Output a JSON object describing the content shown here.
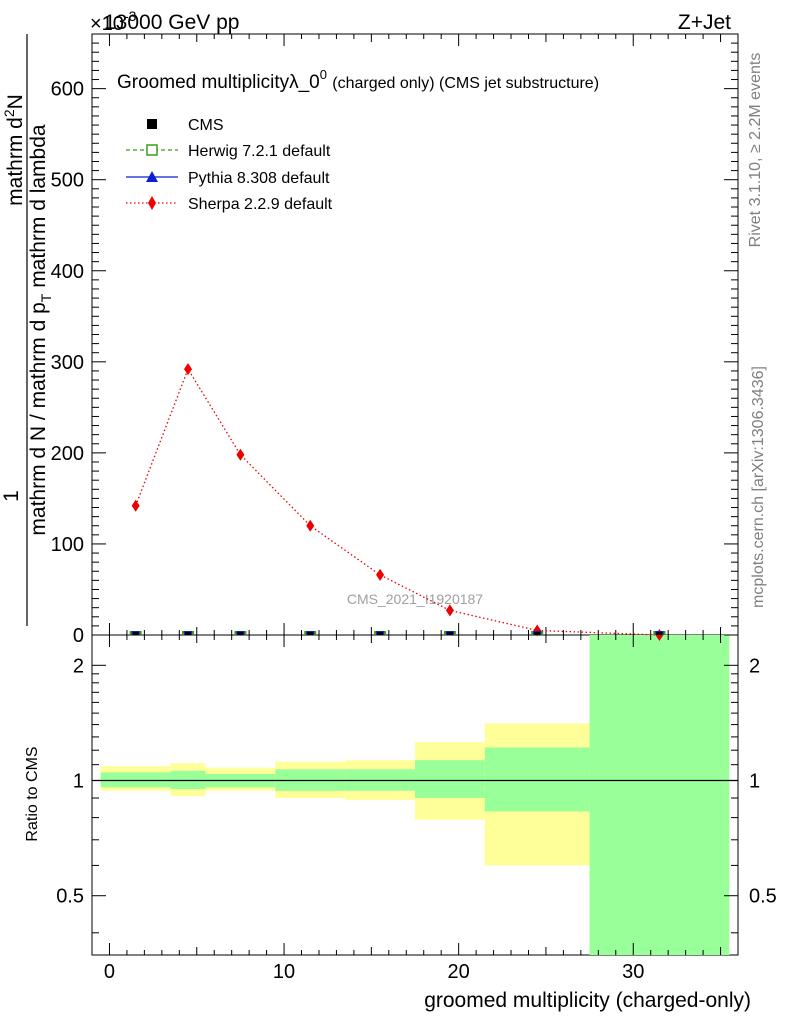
{
  "header": {
    "energy_label": "13000 GeV pp",
    "process_label": "Z+Jet",
    "exponent_label": "×10",
    "exponent_power": "-3"
  },
  "side": {
    "rivet_label": "Rivet 3.1.10, ≥ 2.2M events",
    "source_label": "mcplots.cern.ch [arXiv:1306.3436]"
  },
  "chart_data": [
    {
      "type": "line",
      "panel": "main",
      "title_main": "Groomed multiplicityλ_0",
      "title_sup": "0",
      "title_extra": "(charged only) (CMS jet substructure)",
      "ylabel_top": "1",
      "ylabel_left_lines": [
        "mathrm dN",
        "mathrm d p_T mathrm d lambda",
        "mathrm d N / mathrm d p_T mathrm d lambda"
      ],
      "ylabel_left_text": "mathrm d N / mathrm d p",
      "ylabel_left_sub": "T",
      "ylabel_mid_text": "mathrm d p",
      "ylabel_mid_sub": "T",
      "ylabel_mid_tail": " mathrm d lambda",
      "ylabel_numer": "mathrm d",
      "ylabel_numer_sup": "2",
      "ylabel_numer_tail": "N",
      "ylim": [
        0,
        660
      ],
      "yticks": [
        0,
        100,
        200,
        300,
        400,
        500,
        600
      ],
      "watermark": "CMS_2021_I1920187",
      "legend_position": "top-left",
      "legend": [
        {
          "label": "CMS",
          "color": "#000000",
          "marker": "square-filled",
          "line": "none"
        },
        {
          "label": "Herwig 7.2.1 default",
          "color": "#3c9a1c",
          "marker": "square-open",
          "line": "dashed"
        },
        {
          "label": "Pythia 8.308 default",
          "color": "#0a1fd0",
          "marker": "triangle",
          "line": "solid"
        },
        {
          "label": "Sherpa 2.2.9 default",
          "color": "#ee0000",
          "marker": "diamond",
          "line": "dotted"
        }
      ],
      "series": [
        {
          "name": "Sherpa 2.2.9 default",
          "color": "#ee0000",
          "x": [
            1.5,
            4.5,
            7.5,
            11.5,
            15.5,
            19.5,
            24.5,
            31.5
          ],
          "y": [
            142,
            292,
            198,
            120,
            66,
            27,
            5,
            0
          ]
        },
        {
          "name": "CMS",
          "color": "#000000",
          "x": [
            1.5,
            4.5,
            7.5,
            11.5,
            15.5,
            19.5,
            24.5,
            31.5
          ],
          "y": [
            0,
            0,
            0,
            0,
            0,
            0,
            0,
            0
          ]
        }
      ]
    },
    {
      "type": "area",
      "panel": "ratio",
      "ylabel": "Ratio to CMS",
      "xlabel": "groomed multiplicity (charged-only)",
      "xlim": [
        -1,
        36
      ],
      "xticks": [
        0,
        10,
        20,
        30
      ],
      "yticks": [
        0.5,
        1,
        2
      ],
      "ylim": [
        0.35,
        2.4
      ],
      "log_scale": true,
      "reference": 1,
      "bins": [
        {
          "lo": -0.5,
          "hi": 3.5,
          "stat_lo": 0.96,
          "stat_hi": 1.05,
          "tot_lo": 0.94,
          "tot_hi": 1.09
        },
        {
          "lo": 3.5,
          "hi": 5.5,
          "stat_lo": 0.95,
          "stat_hi": 1.06,
          "tot_lo": 0.91,
          "tot_hi": 1.11
        },
        {
          "lo": 5.5,
          "hi": 9.5,
          "stat_lo": 0.96,
          "stat_hi": 1.04,
          "tot_lo": 0.94,
          "tot_hi": 1.08
        },
        {
          "lo": 9.5,
          "hi": 13.5,
          "stat_lo": 0.94,
          "stat_hi": 1.07,
          "tot_lo": 0.9,
          "tot_hi": 1.12
        },
        {
          "lo": 13.5,
          "hi": 17.5,
          "stat_lo": 0.94,
          "stat_hi": 1.07,
          "tot_lo": 0.89,
          "tot_hi": 1.13
        },
        {
          "lo": 17.5,
          "hi": 21.5,
          "stat_lo": 0.9,
          "stat_hi": 1.13,
          "tot_lo": 0.79,
          "tot_hi": 1.26
        },
        {
          "lo": 21.5,
          "hi": 27.5,
          "stat_lo": 0.83,
          "stat_hi": 1.22,
          "tot_lo": 0.6,
          "tot_hi": 1.41
        },
        {
          "lo": 27.5,
          "hi": 35.5,
          "stat_lo": 0.3,
          "stat_hi": 2.6,
          "tot_lo": 0.3,
          "tot_hi": 2.6
        }
      ],
      "colors": {
        "stat": "#99ff99",
        "total": "#ffff99",
        "reference": "#000000"
      }
    }
  ]
}
